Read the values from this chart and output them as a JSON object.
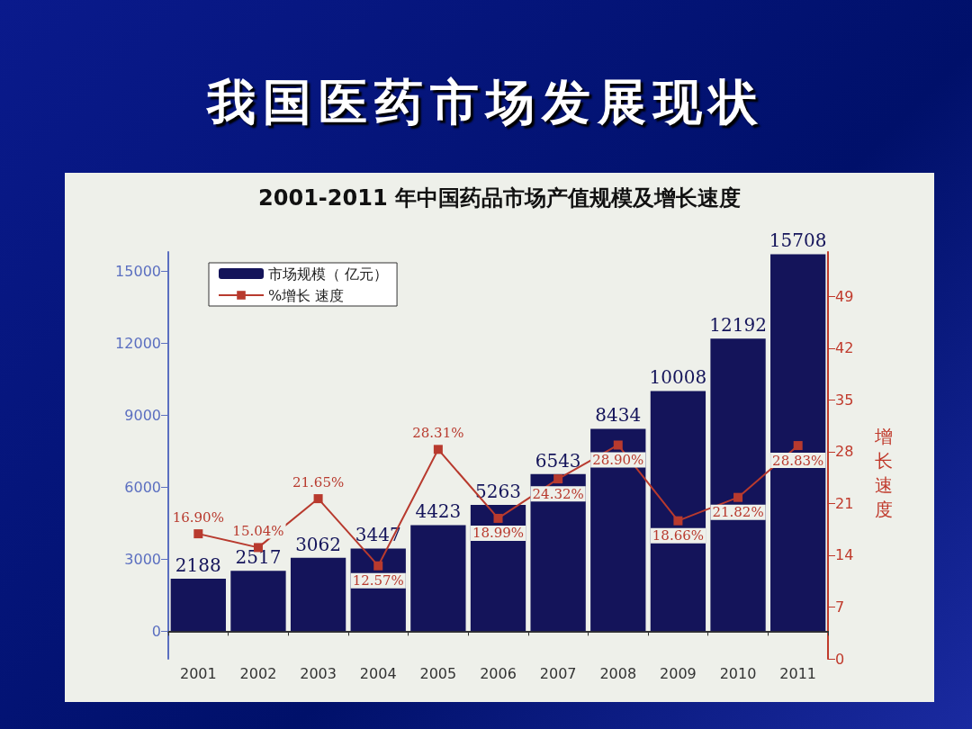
{
  "chart_data": {
    "type": "bar",
    "title": "我国医药市场发展现状",
    "subtitle": "2001-2011 年中国药品市场产值规模及增长速度",
    "y2label": "增长速度",
    "categories": [
      "2001",
      "2002",
      "2003",
      "2004",
      "2005",
      "2006",
      "2007",
      "2008",
      "2009",
      "2010",
      "2011"
    ],
    "series": [
      {
        "name": "市场规模（ 亿元）",
        "type": "bar",
        "color": "#14145a",
        "values": [
          2188,
          2517,
          3062,
          3447,
          4423,
          5263,
          6543,
          8434,
          10008,
          12192,
          15708
        ],
        "value_labels": [
          "2188",
          "2517",
          "3062",
          "3447",
          "4423",
          "5263",
          "6543",
          "8434",
          "10008",
          "12192",
          "15708"
        ]
      },
      {
        "name": "%增长 速度",
        "type": "line",
        "axis": "y2",
        "color": "#b83a2e",
        "values": [
          16.9,
          15.04,
          21.65,
          12.57,
          28.31,
          18.99,
          24.32,
          28.9,
          18.66,
          21.82,
          28.83
        ],
        "value_labels": [
          "16.90%",
          "15.04%",
          "21.65%",
          "12.57%",
          "28.31%",
          "18.99%",
          "24.32%",
          "28.90%",
          "18.66%",
          "21.82%",
          "28.83%"
        ]
      }
    ],
    "ylim": [
      -1150,
      15800
    ],
    "yticks": [
      0,
      3000,
      6000,
      9000,
      12000,
      15000
    ],
    "y2lim": [
      0,
      55
    ],
    "y2ticks": [
      0,
      7,
      14,
      21,
      28,
      35,
      42,
      49
    ],
    "grid": false,
    "legend": "top left",
    "marker": "square",
    "line_style": "solid"
  }
}
